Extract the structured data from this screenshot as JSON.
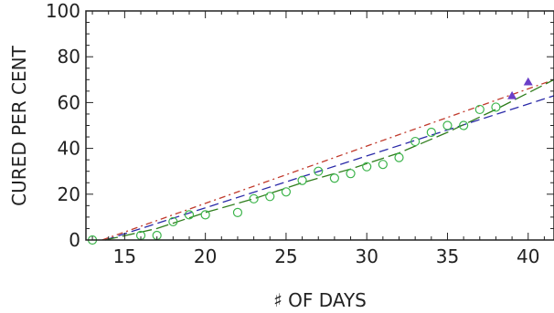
{
  "chart_data": {
    "type": "scatter",
    "xlabel": "♯ OF DAYS",
    "ylabel": "CURED PER CENT",
    "xlim": [
      12.6,
      41.6
    ],
    "ylim": [
      0,
      100
    ],
    "xticks": [
      15,
      20,
      25,
      30,
      35,
      40
    ],
    "yticks": [
      0,
      20,
      40,
      60,
      80,
      100
    ],
    "grid": false,
    "legend": "none",
    "series": [
      {
        "kind": "points",
        "marker": "open-circle",
        "color": "#3cb44b",
        "x": [
          13,
          16,
          17,
          18,
          19,
          20,
          22,
          23,
          24,
          25,
          26,
          27,
          28,
          29,
          30,
          31,
          32,
          33,
          34,
          35,
          36,
          37,
          38
        ],
        "y": [
          0,
          2,
          2,
          8,
          11,
          11,
          12,
          18,
          19,
          21,
          26,
          30,
          27,
          29,
          32,
          33,
          36,
          43,
          47,
          50,
          50,
          57,
          58
        ]
      },
      {
        "kind": "points",
        "marker": "filled-triangle",
        "color": "#6a3fc8",
        "x": [
          39,
          40
        ],
        "y": [
          63,
          69
        ]
      },
      {
        "kind": "line",
        "style": "dashed",
        "color": "#2a2aa8",
        "x": [
          13.8,
          41.6
        ],
        "y": [
          0,
          63
        ]
      },
      {
        "kind": "line",
        "style": "dash-dot",
        "color": "#c0392b",
        "x": [
          13.6,
          41.6
        ],
        "y": [
          0,
          70
        ]
      },
      {
        "kind": "line",
        "style": "long-dash",
        "color": "#2f7d1c",
        "x": [
          13.8,
          17,
          20,
          23,
          26,
          29,
          32,
          35,
          38,
          41.6
        ],
        "y": [
          0,
          5,
          12,
          18,
          25,
          31,
          38,
          47,
          57,
          70
        ]
      }
    ]
  }
}
